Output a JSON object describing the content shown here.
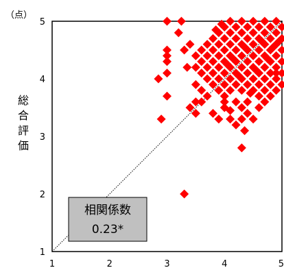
{
  "chart_data": {
    "type": "scatter",
    "unit_label": "（点）",
    "ylabel": "総合評価",
    "xlim": [
      1,
      5
    ],
    "ylim": [
      1,
      5
    ],
    "x_ticks": [
      "1",
      "2",
      "3",
      "4",
      "5"
    ],
    "y_ticks": [
      "1",
      "2",
      "3",
      "4",
      "5"
    ],
    "marker": "diamond",
    "marker_color": "#ff0000",
    "reference_line": "diagonal y = x (dotted)",
    "annotation": {
      "label": "相関係数",
      "value": "0.23*",
      "background": "#c0c0c0"
    },
    "points": [
      [
        3.0,
        5.0
      ],
      [
        3.25,
        5.0
      ],
      [
        3.2,
        4.8
      ],
      [
        3.0,
        4.5
      ],
      [
        3.0,
        4.4
      ],
      [
        3.0,
        4.3
      ],
      [
        3.0,
        4.1
      ],
      [
        2.85,
        4.0
      ],
      [
        3.3,
        4.5
      ],
      [
        3.35,
        4.2
      ],
      [
        3.0,
        3.7
      ],
      [
        2.9,
        3.3
      ],
      [
        3.3,
        2.0
      ],
      [
        3.4,
        3.5
      ],
      [
        3.5,
        3.4
      ],
      [
        3.5,
        3.6
      ],
      [
        3.5,
        3.9
      ],
      [
        3.6,
        3.8
      ],
      [
        4.3,
        2.8
      ],
      [
        4.35,
        3.1
      ],
      [
        4.2,
        3.2
      ],
      [
        4.5,
        3.3
      ],
      [
        4.4,
        3.4
      ],
      [
        3.8,
        3.4
      ],
      [
        3.9,
        3.3
      ],
      [
        4.0,
        3.5
      ],
      [
        4.1,
        3.3
      ],
      [
        4.0,
        3.7
      ],
      [
        4.2,
        3.6
      ],
      [
        4.3,
        3.5
      ],
      [
        4.4,
        3.6
      ],
      [
        4.6,
        3.5
      ],
      [
        4.7,
        3.6
      ],
      [
        4.8,
        3.7
      ],
      [
        4.9,
        3.8
      ],
      [
        5.0,
        3.9
      ],
      [
        4.9,
        4.1
      ],
      [
        3.4,
        4.6
      ],
      [
        3.5,
        4.4
      ],
      [
        3.5,
        4.2
      ],
      [
        3.6,
        4.3
      ],
      [
        3.6,
        4.5
      ],
      [
        3.6,
        4.1
      ],
      [
        3.7,
        4.0
      ],
      [
        3.7,
        4.2
      ],
      [
        3.7,
        4.4
      ],
      [
        3.7,
        4.6
      ],
      [
        3.8,
        3.9
      ],
      [
        3.8,
        4.1
      ],
      [
        3.8,
        4.3
      ],
      [
        3.8,
        4.5
      ],
      [
        3.8,
        4.7
      ],
      [
        3.9,
        3.8
      ],
      [
        3.9,
        4.0
      ],
      [
        3.9,
        4.2
      ],
      [
        3.9,
        4.4
      ],
      [
        3.9,
        4.6
      ],
      [
        3.9,
        4.8
      ],
      [
        4.0,
        3.9
      ],
      [
        4.0,
        4.1
      ],
      [
        4.0,
        4.3
      ],
      [
        4.0,
        4.5
      ],
      [
        4.0,
        4.7
      ],
      [
        4.0,
        4.9
      ],
      [
        4.1,
        3.8
      ],
      [
        4.1,
        4.0
      ],
      [
        4.1,
        4.2
      ],
      [
        4.1,
        4.4
      ],
      [
        4.1,
        4.6
      ],
      [
        4.1,
        4.8
      ],
      [
        4.1,
        5.0
      ],
      [
        4.2,
        3.9
      ],
      [
        4.2,
        4.1
      ],
      [
        4.2,
        4.3
      ],
      [
        4.2,
        4.5
      ],
      [
        4.2,
        4.7
      ],
      [
        4.2,
        4.9
      ],
      [
        4.3,
        3.8
      ],
      [
        4.3,
        4.0
      ],
      [
        4.3,
        4.2
      ],
      [
        4.3,
        4.4
      ],
      [
        4.3,
        4.6
      ],
      [
        4.3,
        4.8
      ],
      [
        4.3,
        5.0
      ],
      [
        4.4,
        3.9
      ],
      [
        4.4,
        4.1
      ],
      [
        4.4,
        4.3
      ],
      [
        4.4,
        4.5
      ],
      [
        4.4,
        4.7
      ],
      [
        4.4,
        4.9
      ],
      [
        4.5,
        3.8
      ],
      [
        4.5,
        4.0
      ],
      [
        4.5,
        4.2
      ],
      [
        4.5,
        4.4
      ],
      [
        4.5,
        4.6
      ],
      [
        4.5,
        4.8
      ],
      [
        4.5,
        5.0
      ],
      [
        4.6,
        3.9
      ],
      [
        4.6,
        4.1
      ],
      [
        4.6,
        4.3
      ],
      [
        4.6,
        4.5
      ],
      [
        4.6,
        4.7
      ],
      [
        4.6,
        4.9
      ],
      [
        4.7,
        3.8
      ],
      [
        4.7,
        4.0
      ],
      [
        4.7,
        4.2
      ],
      [
        4.7,
        4.4
      ],
      [
        4.7,
        4.6
      ],
      [
        4.7,
        4.8
      ],
      [
        4.7,
        5.0
      ],
      [
        4.8,
        3.9
      ],
      [
        4.8,
        4.1
      ],
      [
        4.8,
        4.3
      ],
      [
        4.8,
        4.5
      ],
      [
        4.8,
        4.7
      ],
      [
        4.8,
        4.9
      ],
      [
        4.9,
        4.0
      ],
      [
        4.9,
        4.2
      ],
      [
        4.9,
        4.4
      ],
      [
        4.9,
        4.6
      ],
      [
        4.9,
        4.8
      ],
      [
        4.9,
        5.0
      ],
      [
        5.0,
        4.1
      ],
      [
        5.0,
        4.3
      ],
      [
        5.0,
        4.5
      ],
      [
        5.0,
        4.7
      ],
      [
        5.0,
        4.9
      ],
      [
        3.95,
        4.95
      ],
      [
        4.25,
        4.05
      ],
      [
        4.35,
        4.55
      ],
      [
        4.15,
        4.35
      ],
      [
        4.55,
        4.15
      ],
      [
        4.65,
        4.65
      ],
      [
        4.45,
        3.75
      ],
      [
        4.05,
        4.25
      ],
      [
        4.75,
        4.35
      ],
      [
        4.85,
        4.55
      ],
      [
        3.85,
        4.85
      ],
      [
        4.95,
        4.65
      ],
      [
        4.3,
        3.3
      ],
      [
        4.6,
        3.7
      ],
      [
        4.0,
        3.6
      ],
      [
        3.7,
        3.7
      ],
      [
        3.6,
        3.6
      ],
      [
        4.1,
        3.45
      ]
    ]
  }
}
